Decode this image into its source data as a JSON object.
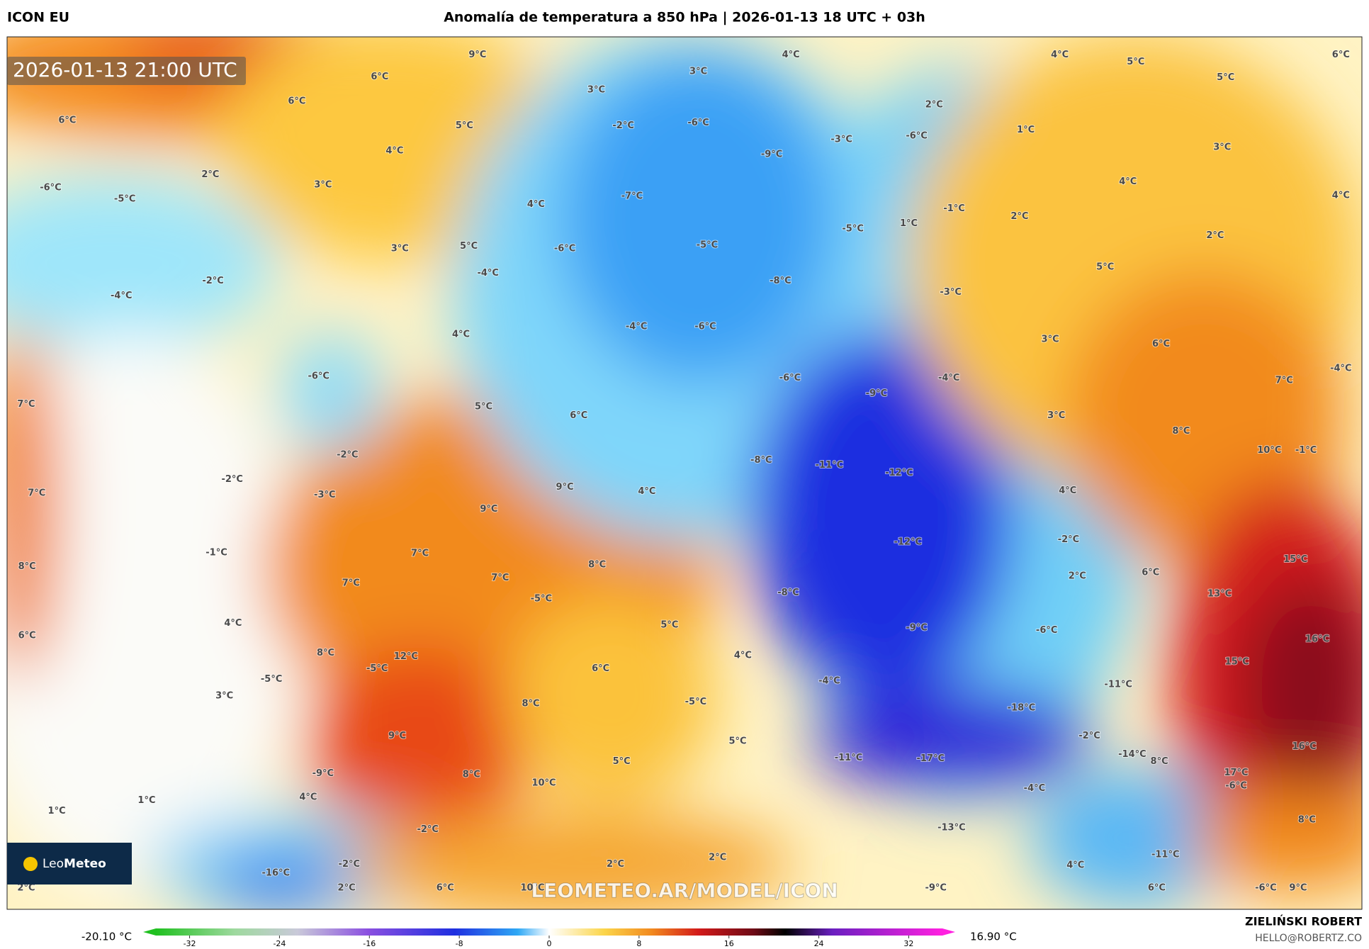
{
  "header": {
    "model": "ICON EU",
    "title": "Anomalía de temperatura a 850 hPa | 2026-01-13 18 UTC + 03h"
  },
  "map": {
    "timestamp": "2026-01-13 21:00 UTC",
    "watermark": "LEOMETEO.AR/MODEL/ICON",
    "logo": {
      "part1": "Leo",
      "part2": "Meteo"
    },
    "labels": [
      "9°C",
      "6°C",
      "6°C",
      "6°C",
      "5°C",
      "4°C",
      "2°C",
      "3°C",
      "-6°C",
      "-5°C",
      "4°C",
      "5°C",
      "3°C",
      "-2°C",
      "-4°C",
      "-4°C",
      "4°C",
      "-6°C",
      "7°C",
      "5°C",
      "6°C",
      "-2°C",
      "-2°C",
      "7°C",
      "-3°C",
      "9°C",
      "4°C",
      "9°C",
      "-1°C",
      "8°C",
      "7°C",
      "8°C",
      "7°C",
      "7°C",
      "-5°C",
      "4°C",
      "6°C",
      "5°C",
      "8°C",
      "12°C",
      "4°C",
      "-5°C",
      "-5°C",
      "6°C",
      "3°C",
      "8°C",
      "-5°C",
      "9°C",
      "5°C",
      "5°C",
      "-9°C",
      "8°C",
      "10°C",
      "4°C",
      "1°C",
      "1°C",
      "-2°C",
      "-2°C",
      "-16°C",
      "2°C",
      "2°C",
      "6°C",
      "10°C",
      "2°C",
      "2°C",
      "-9°C",
      "-13°C",
      "-11°C",
      "-17°C",
      "-18°C",
      "-4°C",
      "-11°C",
      "-2°C",
      "-14°C",
      "8°C",
      "17°C",
      "-6°C",
      "8°C",
      "-11°C",
      "4°C",
      "6°C",
      "-6°C",
      "9°C",
      "16°C",
      "15°C",
      "16°C",
      "13°C",
      "15°C",
      "6°C",
      "2°C",
      "-2°C",
      "4°C",
      "-9°C",
      "-6°C",
      "-4°C",
      "-8°C",
      "-12°C",
      "-12°C",
      "-11°C",
      "-8°C",
      "-9°C",
      "-4°C",
      "-6°C",
      "-6°C",
      "-4°C",
      "-8°C",
      "-3°C",
      "-5°C",
      "-5°C",
      "-6°C",
      "-7°C",
      "1°C",
      "-1°C",
      "2°C",
      "-9°C",
      "-3°C",
      "-6°C",
      "-6°C",
      "2°C",
      "1°C",
      "-2°C",
      "3°C",
      "3°C",
      "4°C",
      "4°C",
      "5°C",
      "5°C",
      "6°C",
      "3°C",
      "4°C",
      "4°C",
      "2°C",
      "5°C",
      "3°C",
      "6°C",
      "7°C",
      "-4°C",
      "3°C",
      "8°C",
      "10°C",
      "-1°C"
    ]
  },
  "colorbar": {
    "min_label": "-20.10 °C",
    "max_label": "16.90 °C",
    "xlim": [
      -35,
      35
    ],
    "xticks": [
      -32,
      -24,
      -16,
      -8,
      0,
      8,
      16,
      24,
      32
    ]
  },
  "credit": {
    "name": "ZIELIŃSKI ROBERT",
    "email": "HELLO@ROBERTZ.CO"
  }
}
